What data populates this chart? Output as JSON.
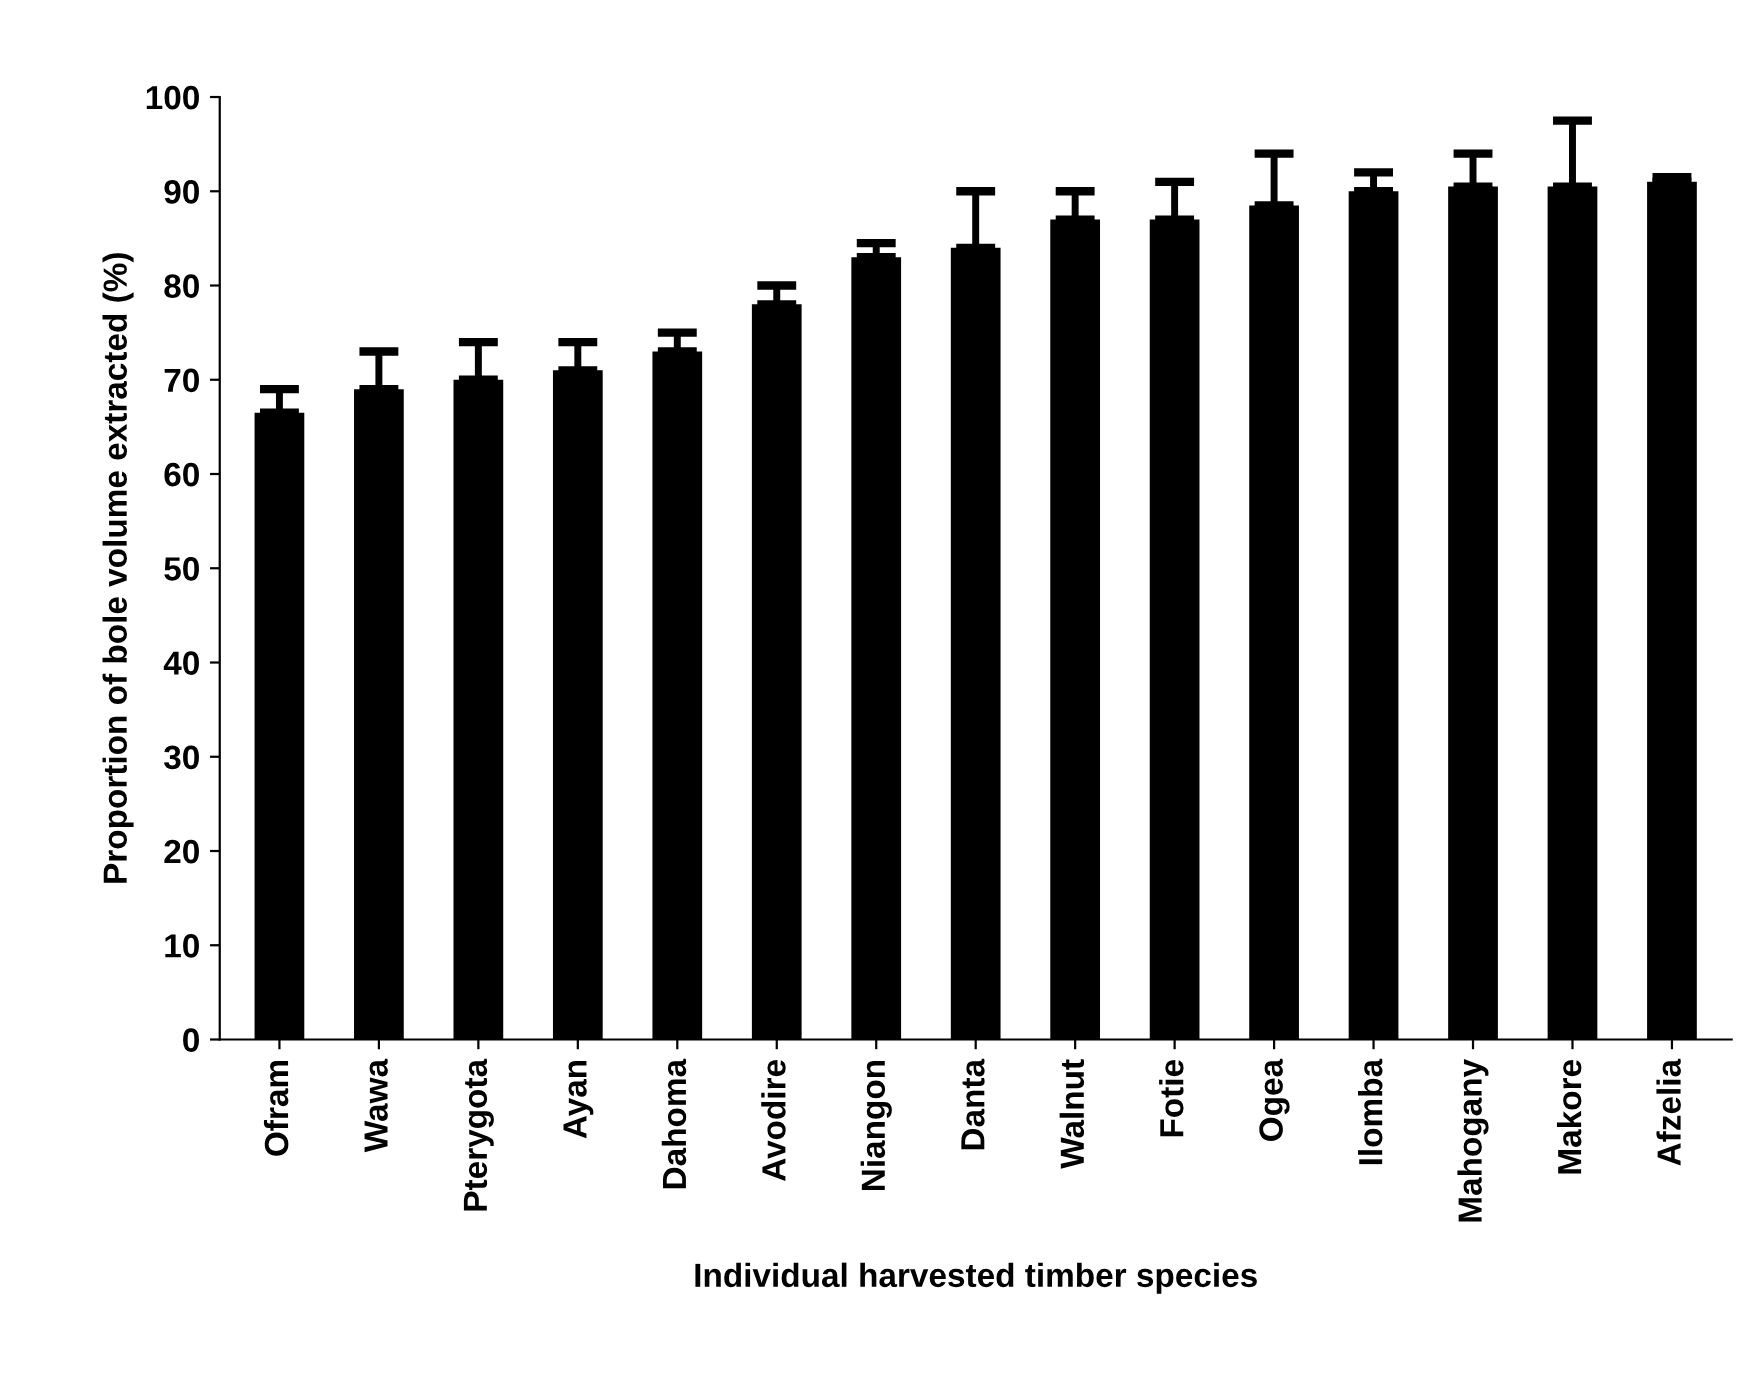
{
  "chart_data": {
    "type": "bar",
    "xlabel": "Individual harvested timber species",
    "ylabel": "Proportion of bole volume extracted (%)",
    "categories": [
      "Ofram",
      "Wawa",
      "Pterygota",
      "Ayan",
      "Dahoma",
      "Avodire",
      "Niangon",
      "Danta",
      "Walnut",
      "Fotie",
      "Ogea",
      "Ilomba",
      "Mahogany",
      "Makore",
      "Afzelia"
    ],
    "values": [
      66.5,
      69,
      70,
      71,
      73,
      78,
      83,
      84,
      87,
      87,
      88.5,
      90,
      90.5,
      90.5,
      91
    ],
    "errors": [
      [
        66.5,
        69
      ],
      [
        69,
        73
      ],
      [
        70,
        74
      ],
      [
        71,
        74
      ],
      [
        73,
        75
      ],
      [
        78,
        80
      ],
      [
        83,
        84.5
      ],
      [
        84,
        90
      ],
      [
        87,
        90
      ],
      [
        87,
        91
      ],
      [
        88.5,
        94
      ],
      [
        90,
        92
      ],
      [
        90.5,
        94
      ],
      [
        90.5,
        97.5
      ],
      [
        91,
        91.5
      ]
    ],
    "color": "#000000",
    "ylim": [
      0,
      100
    ],
    "yticks": [
      0,
      10,
      20,
      30,
      40,
      50,
      60,
      70,
      80,
      90,
      100
    ],
    "grid": false,
    "legend": false
  }
}
